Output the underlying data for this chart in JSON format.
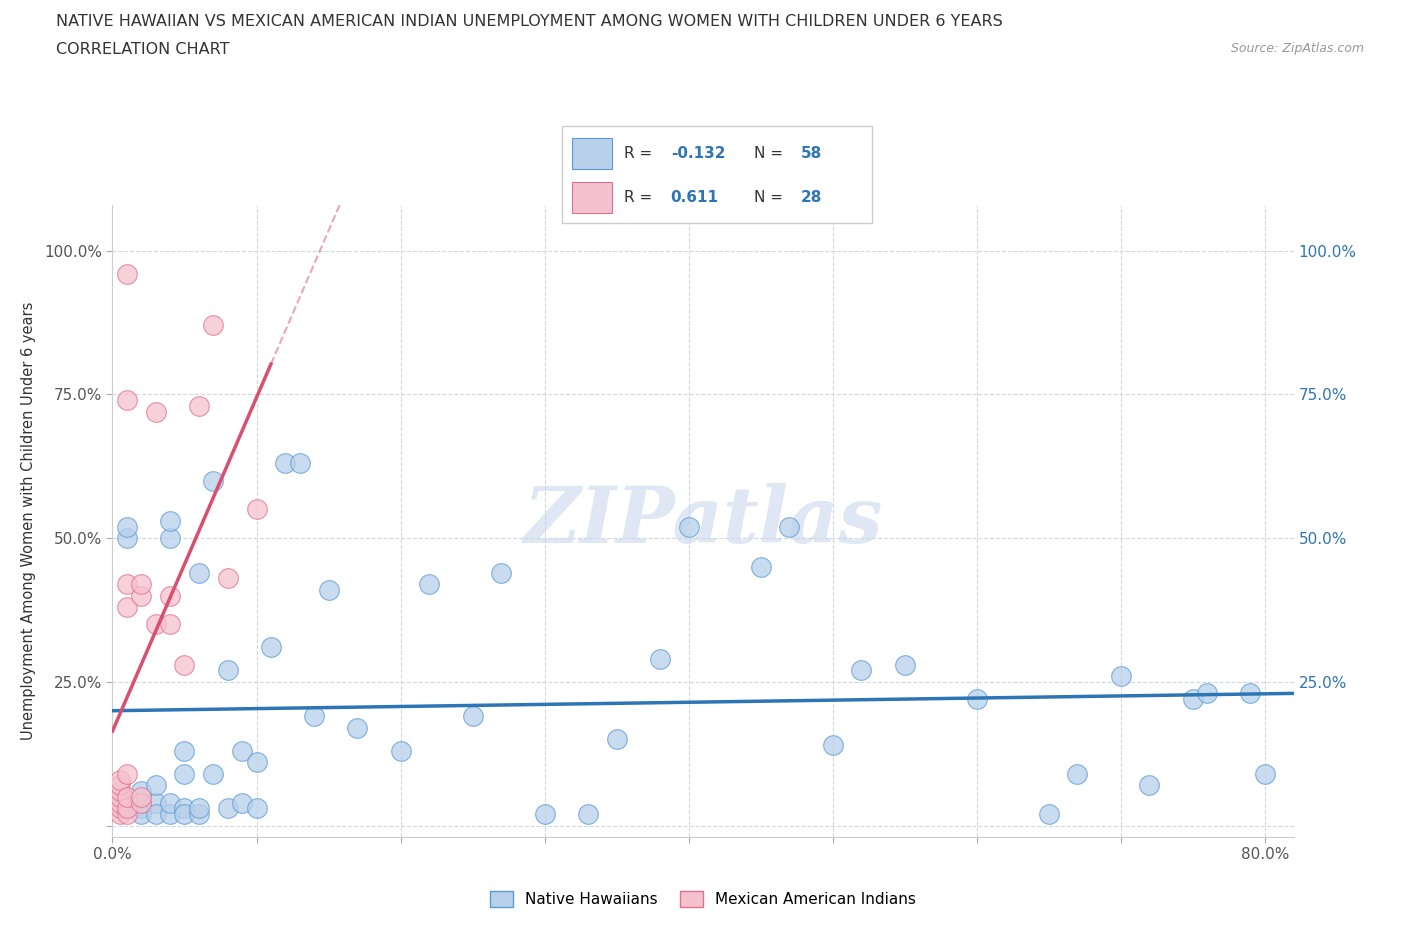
{
  "title_line1": "NATIVE HAWAIIAN VS MEXICAN AMERICAN INDIAN UNEMPLOYMENT AMONG WOMEN WITH CHILDREN UNDER 6 YEARS",
  "title_line2": "CORRELATION CHART",
  "source": "Source: ZipAtlas.com",
  "ylabel": "Unemployment Among Women with Children Under 6 years",
  "xlim": [
    0.0,
    0.82
  ],
  "ylim": [
    -0.02,
    1.08
  ],
  "x_ticks": [
    0.0,
    0.1,
    0.2,
    0.3,
    0.4,
    0.5,
    0.6,
    0.7,
    0.8
  ],
  "x_tick_labels": [
    "0.0%",
    "",
    "",
    "",
    "",
    "",
    "",
    "",
    "80.0%"
  ],
  "y_ticks": [
    0.0,
    0.25,
    0.5,
    0.75,
    1.0
  ],
  "y_tick_labels_left": [
    "",
    "25.0%",
    "50.0%",
    "75.0%",
    "100.0%"
  ],
  "y_tick_labels_right": [
    "",
    "25.0%",
    "50.0%",
    "75.0%",
    "100.0%"
  ],
  "blue_R": -0.132,
  "blue_N": 58,
  "pink_R": 0.611,
  "pink_N": 28,
  "blue_color": "#b8d0ea",
  "blue_edge_color": "#5b9bd5",
  "blue_line_color": "#2e75b6",
  "pink_color": "#f4c2ce",
  "pink_edge_color": "#e07090",
  "pink_line_color": "#d94f70",
  "grid_color": "#d0d8e0",
  "watermark": "ZIPatlas",
  "blue_scatter_x": [
    0.01,
    0.01,
    0.01,
    0.02,
    0.02,
    0.02,
    0.02,
    0.03,
    0.03,
    0.03,
    0.04,
    0.04,
    0.04,
    0.04,
    0.05,
    0.05,
    0.05,
    0.05,
    0.06,
    0.06,
    0.06,
    0.07,
    0.07,
    0.08,
    0.08,
    0.09,
    0.09,
    0.1,
    0.1,
    0.11,
    0.12,
    0.13,
    0.14,
    0.15,
    0.17,
    0.2,
    0.22,
    0.25,
    0.27,
    0.3,
    0.33,
    0.35,
    0.38,
    0.4,
    0.45,
    0.47,
    0.5,
    0.52,
    0.55,
    0.6,
    0.65,
    0.67,
    0.7,
    0.72,
    0.75,
    0.76,
    0.79,
    0.8
  ],
  "blue_scatter_y": [
    0.5,
    0.52,
    0.03,
    0.03,
    0.04,
    0.06,
    0.02,
    0.04,
    0.07,
    0.02,
    0.5,
    0.53,
    0.02,
    0.04,
    0.03,
    0.09,
    0.13,
    0.02,
    0.02,
    0.03,
    0.44,
    0.09,
    0.6,
    0.27,
    0.03,
    0.04,
    0.13,
    0.03,
    0.11,
    0.31,
    0.63,
    0.63,
    0.19,
    0.41,
    0.17,
    0.13,
    0.42,
    0.19,
    0.44,
    0.02,
    0.02,
    0.15,
    0.29,
    0.52,
    0.45,
    0.52,
    0.14,
    0.27,
    0.28,
    0.22,
    0.02,
    0.09,
    0.26,
    0.07,
    0.22,
    0.23,
    0.23,
    0.09
  ],
  "pink_scatter_x": [
    0.005,
    0.005,
    0.005,
    0.005,
    0.005,
    0.005,
    0.005,
    0.01,
    0.01,
    0.01,
    0.01,
    0.01,
    0.01,
    0.01,
    0.01,
    0.02,
    0.02,
    0.02,
    0.02,
    0.03,
    0.03,
    0.04,
    0.04,
    0.05,
    0.06,
    0.07,
    0.08,
    0.1
  ],
  "pink_scatter_y": [
    0.02,
    0.03,
    0.04,
    0.05,
    0.06,
    0.07,
    0.08,
    0.02,
    0.03,
    0.05,
    0.09,
    0.38,
    0.42,
    0.74,
    0.96,
    0.04,
    0.4,
    0.42,
    0.05,
    0.35,
    0.72,
    0.35,
    0.4,
    0.28,
    0.73,
    0.87,
    0.43,
    0.55
  ]
}
